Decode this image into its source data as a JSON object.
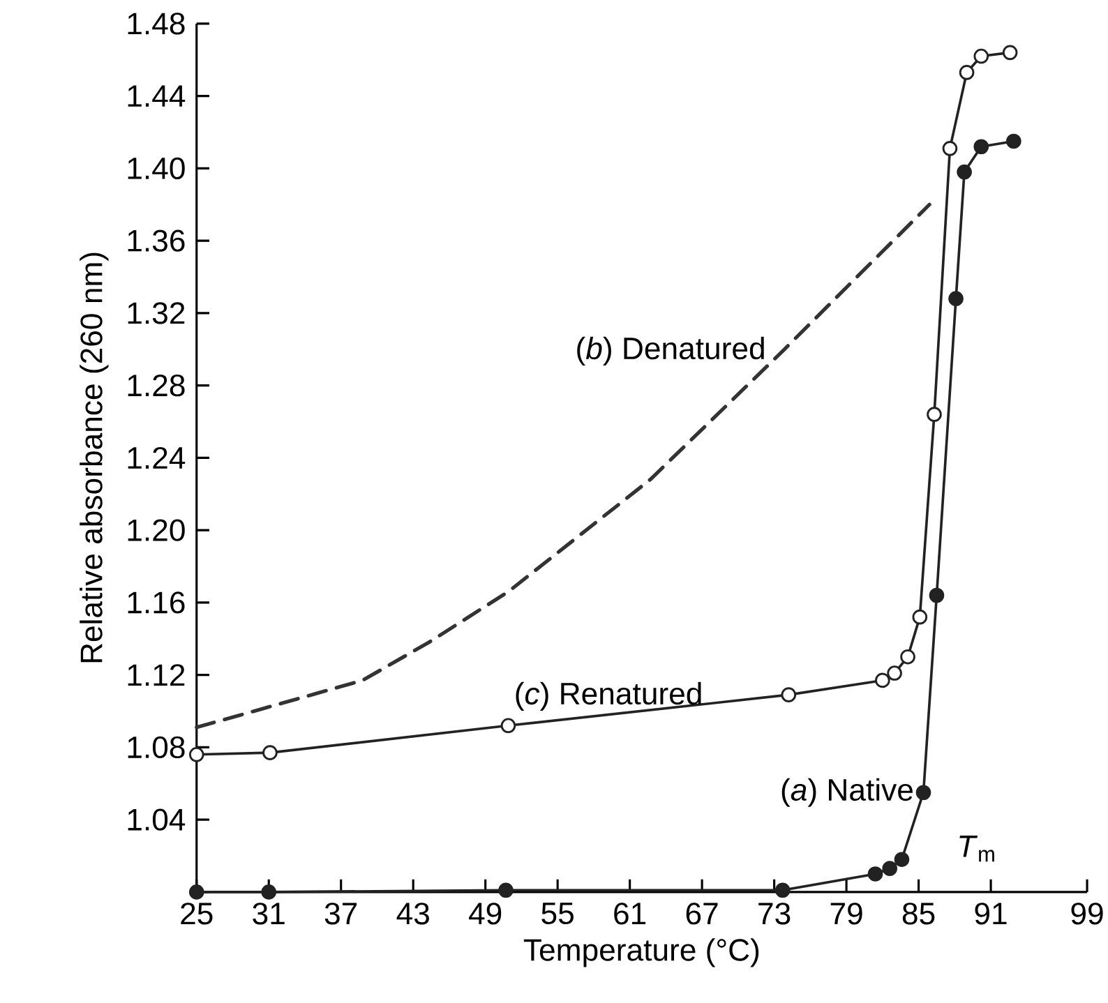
{
  "chart_data": {
    "type": "line",
    "xlabel": "Temperature (°C)",
    "ylabel": "Relative absorbance (260 nm)",
    "xlim": [
      25,
      99
    ],
    "ylim": [
      1.0,
      1.48
    ],
    "xticks": [
      25,
      31,
      37,
      43,
      49,
      55,
      61,
      67,
      73,
      79,
      85,
      91,
      99
    ],
    "yticks": [
      {
        "value": 1.0,
        "label": null
      },
      1.04,
      1.08,
      1.12,
      1.16,
      {
        "value": 1.2,
        "label": "1.20"
      },
      1.24,
      1.28,
      1.32,
      1.36,
      {
        "value": 1.4,
        "label": "1.40"
      },
      1.44,
      1.48
    ],
    "marker": "circle",
    "line_style": "solid",
    "annotations": [
      "*T*$_{m}$"
    ],
    "series": [
      {
        "name": "(*a*)  Native",
        "color": "#222222",
        "x": [
          25,
          31,
          50.7,
          73.7,
          81.4,
          82.6,
          83.6,
          85.4,
          86.5,
          88.1,
          88.8,
          90.2,
          92.9
        ],
        "values": [
          1.0,
          1.0,
          1.001,
          1.001,
          1.01,
          1.013,
          1.018,
          1.055,
          1.164,
          1.328,
          1.398,
          1.412,
          1.415
        ]
      },
      {
        "name": "(*c*)  Renatured",
        "color": "#222222",
        "x": [
          25,
          31.1,
          50.9,
          74.2,
          82.0,
          83.0,
          84.1,
          85.1,
          86.3,
          87.6,
          89.0,
          90.2,
          92.6
        ],
        "values": [
          1.076,
          1.077,
          1.092,
          1.109,
          1.117,
          1.121,
          1.13,
          1.152,
          1.264,
          1.411,
          1.453,
          1.462,
          1.464
        ]
      },
      {
        "name": "(*b*)  Denatured",
        "color": "#333333",
        "marker": "none",
        "line_style": "dashed",
        "x": [
          25,
          38.8,
          44.3,
          50.9,
          62.7,
          73.7,
          85.9
        ],
        "values": [
          1.091,
          1.117,
          1.138,
          1.166,
          1.228,
          1.299,
          1.38
        ]
      }
    ]
  }
}
